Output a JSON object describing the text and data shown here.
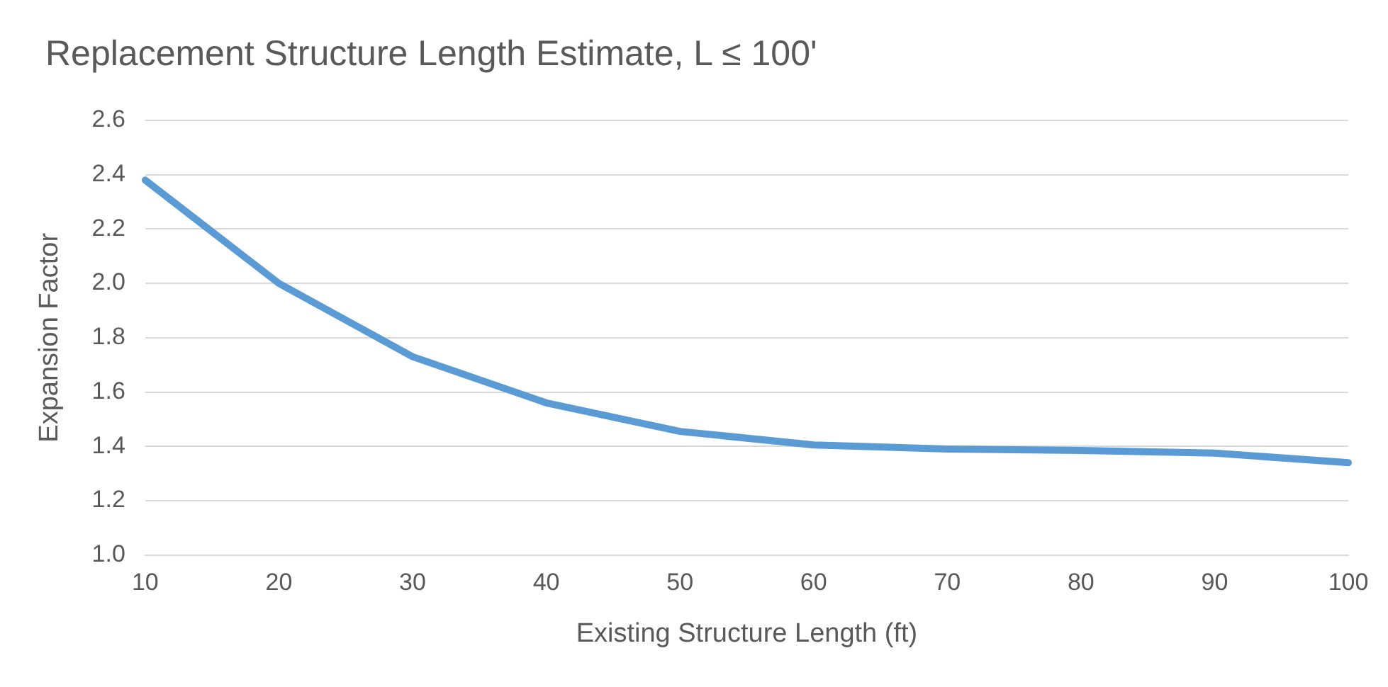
{
  "chart_data": {
    "type": "line",
    "title": "Replacement Structure Length Estimate, L ≤ 100'",
    "xlabel": "Existing Structure Length (ft)",
    "ylabel": "Expansion Factor",
    "categories": [
      "10",
      "20",
      "30",
      "40",
      "50",
      "60",
      "70",
      "80",
      "90",
      "100"
    ],
    "series": [
      {
        "color": "#5b9bd5",
        "values": [
          2.38,
          2.0,
          1.73,
          1.56,
          1.455,
          1.405,
          1.39,
          1.385,
          1.375,
          1.34
        ]
      }
    ],
    "ylim": [
      1.0,
      2.6
    ],
    "yticks": [
      {
        "value": 1.0,
        "label": "1.0"
      },
      {
        "value": 1.2,
        "label": "1.2"
      },
      {
        "value": 1.4,
        "label": "1.4"
      },
      {
        "value": 1.6,
        "label": "1.6"
      },
      {
        "value": 1.8,
        "label": "1.8"
      },
      {
        "value": 2.0,
        "label": "2.0"
      },
      {
        "value": 2.2,
        "label": "2.2"
      },
      {
        "value": 2.4,
        "label": "2.4"
      },
      {
        "value": 2.6,
        "label": "2.6"
      }
    ],
    "grid": "y",
    "legend": false,
    "marker": "none",
    "line_style": "solid"
  }
}
